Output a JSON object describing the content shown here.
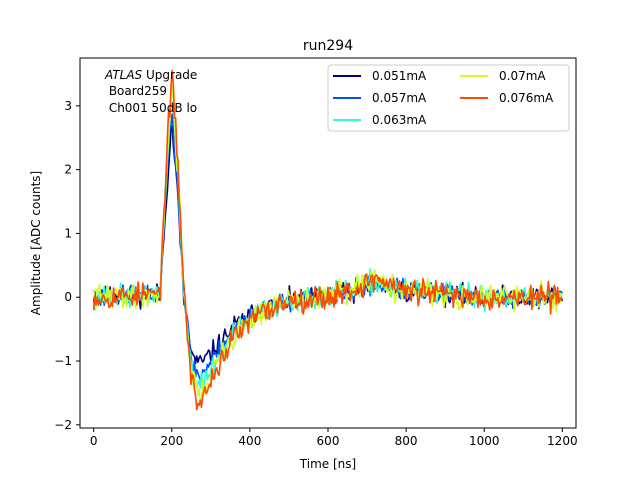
{
  "chart_data": {
    "type": "line",
    "title": "run294",
    "xlabel": "Time [ns]",
    "ylabel": "Amplitude [ADC counts]",
    "xlim": [
      -35,
      1235
    ],
    "ylim": [
      -2.05,
      3.75
    ],
    "xticks": [
      0,
      200,
      400,
      600,
      800,
      1000,
      1200
    ],
    "yticks": [
      -2,
      -1,
      0,
      1,
      2,
      3
    ],
    "grid": false,
    "legend_position": "top-right",
    "legend_columns": 2,
    "annotation": {
      "line1_italic": "ATLAS",
      "line1_rest": " Upgrade",
      "line2": " Board259",
      "line3": " Ch001 50dB lo"
    },
    "series": [
      {
        "name": "0.051mA",
        "color": "#00007f",
        "peak": 2.75,
        "undershoot": -1.05,
        "noise": 0.1,
        "seed": 11,
        "x": [
          0,
          170,
          185,
          200,
          215,
          230,
          250,
          270,
          290,
          320,
          360,
          420,
          500,
          600,
          680,
          720,
          800,
          1000,
          1200
        ],
        "y": [
          0,
          0.05,
          1.5,
          2.75,
          1.6,
          0.1,
          -0.9,
          -1.05,
          -0.95,
          -0.75,
          -0.45,
          -0.2,
          -0.05,
          0.0,
          0.1,
          0.2,
          0.1,
          0.0,
          0.0
        ]
      },
      {
        "name": "0.057mA",
        "color": "#0050ff",
        "peak": 3.0,
        "undershoot": -1.25,
        "noise": 0.1,
        "seed": 23,
        "x": [
          0,
          170,
          185,
          200,
          215,
          230,
          250,
          270,
          290,
          320,
          360,
          420,
          500,
          600,
          680,
          720,
          800,
          1000,
          1200
        ],
        "y": [
          0,
          0.05,
          1.7,
          3.0,
          1.8,
          0.1,
          -1.0,
          -1.25,
          -1.1,
          -0.85,
          -0.5,
          -0.22,
          -0.05,
          0.0,
          0.12,
          0.22,
          0.1,
          0.0,
          0.0
        ]
      },
      {
        "name": "0.063mA",
        "color": "#29ffce",
        "peak": 3.2,
        "undershoot": -1.4,
        "noise": 0.11,
        "seed": 37,
        "x": [
          0,
          170,
          185,
          200,
          215,
          230,
          250,
          270,
          290,
          320,
          360,
          420,
          500,
          600,
          680,
          720,
          800,
          1000,
          1200
        ],
        "y": [
          0,
          0.05,
          1.8,
          3.2,
          1.9,
          0.15,
          -1.1,
          -1.4,
          -1.25,
          -0.95,
          -0.55,
          -0.25,
          -0.05,
          0.0,
          0.13,
          0.25,
          0.1,
          0.0,
          0.0
        ]
      },
      {
        "name": "0.07mA",
        "color": "#ceff29",
        "peak": 3.4,
        "undershoot": -1.55,
        "noise": 0.12,
        "seed": 41,
        "x": [
          0,
          170,
          185,
          200,
          215,
          230,
          250,
          270,
          290,
          320,
          360,
          420,
          500,
          600,
          680,
          720,
          800,
          1000,
          1200
        ],
        "y": [
          0,
          0.05,
          1.9,
          3.4,
          2.1,
          0.2,
          -1.2,
          -1.55,
          -1.35,
          -1.0,
          -0.6,
          -0.27,
          -0.05,
          0.0,
          0.14,
          0.27,
          0.1,
          0.0,
          0.0
        ]
      },
      {
        "name": "0.076mA",
        "color": "#ff4a00",
        "peak": 3.5,
        "undershoot": -1.7,
        "noise": 0.12,
        "seed": 53,
        "x": [
          0,
          170,
          185,
          200,
          215,
          230,
          250,
          270,
          290,
          320,
          360,
          420,
          500,
          600,
          680,
          720,
          800,
          1000,
          1200
        ],
        "y": [
          0,
          0.05,
          2.0,
          3.5,
          2.2,
          0.2,
          -1.3,
          -1.7,
          -1.45,
          -1.05,
          -0.62,
          -0.28,
          -0.05,
          0.0,
          0.15,
          0.3,
          0.1,
          0.0,
          0.0
        ]
      }
    ]
  }
}
